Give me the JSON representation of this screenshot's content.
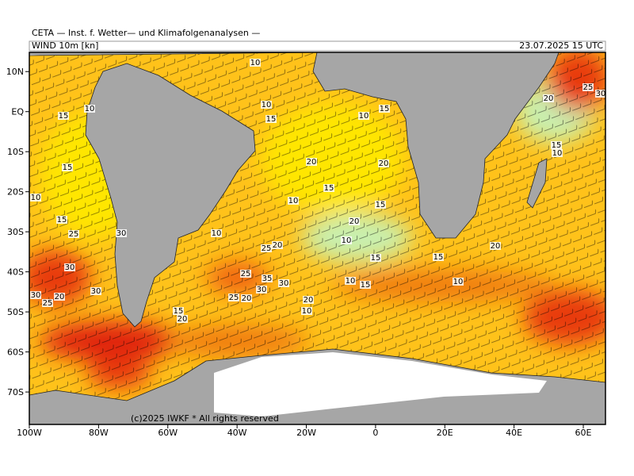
{
  "header": {
    "title": "CETA — Inst. f. Wetter— und Klimafolgenanalysen —",
    "parameter": "WIND 10m [kn]",
    "valid_time": "23.07.2025 15 UTC"
  },
  "map": {
    "lon_range": [
      -100,
      66.4
    ],
    "lat_range": [
      14.8,
      -78.1
    ],
    "lat_ticks": [
      {
        "value": 10,
        "label": "10N"
      },
      {
        "value": 0,
        "label": "EQ"
      },
      {
        "value": -10,
        "label": "10S"
      },
      {
        "value": -20,
        "label": "20S"
      },
      {
        "value": -30,
        "label": "30S"
      },
      {
        "value": -40,
        "label": "40S"
      },
      {
        "value": -50,
        "label": "50S"
      },
      {
        "value": -60,
        "label": "60S"
      },
      {
        "value": -70,
        "label": "70S"
      }
    ],
    "lon_ticks": [
      {
        "value": -100,
        "label": "100W"
      },
      {
        "value": -80,
        "label": "80W"
      },
      {
        "value": -60,
        "label": "60W"
      },
      {
        "value": -40,
        "label": "40W"
      },
      {
        "value": -20,
        "label": "20W"
      },
      {
        "value": 0,
        "label": "0"
      },
      {
        "value": 20,
        "label": "20E"
      },
      {
        "value": 40,
        "label": "40E"
      },
      {
        "value": 60,
        "label": "60E"
      }
    ],
    "contour_labels": [
      10,
      10,
      15,
      10,
      15,
      10,
      15,
      15,
      20,
      20,
      15,
      10,
      15,
      10,
      15,
      10,
      20,
      25,
      30,
      20,
      15,
      25,
      30,
      10,
      25,
      20,
      10,
      15,
      15,
      20,
      30,
      25,
      35,
      30,
      30,
      25,
      20,
      30,
      20,
      25,
      30,
      20,
      15,
      10,
      20,
      10,
      15,
      10
    ],
    "copyright": "(c)2025 IWKF * All rights reserved"
  }
}
